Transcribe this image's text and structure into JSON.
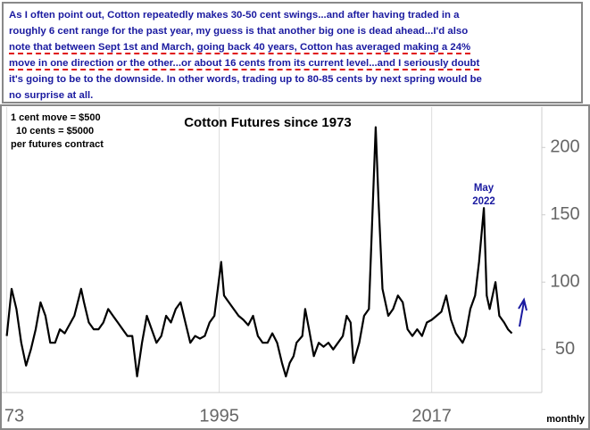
{
  "note_text": [
    "As I often point out, Cotton repeatedly makes 30-50 cent swings...and after having traded in a",
    "roughly 6 cent range for the past year, my guess is that another big one is dead ahead...I'd also",
    "note that between Sept 1st and March, going back 40 years, Cotton has averaged making a 24%",
    "move in one direction or the other...or about 16 cents from its current level...and I seriously doubt",
    "it's going to be to the downside. In other words, trading up to 80-85 cents by next spring would be",
    "no surprise at all."
  ],
  "chart_data": {
    "type": "line",
    "title": "Cotton Futures since 1973",
    "annotations": [
      "1 cent move = $500",
      "10 cents = $5000",
      "per futures contract"
    ],
    "event_label": [
      "May",
      "2022"
    ],
    "frequency_label": "monthly",
    "color": "#000000",
    "x": [
      1973.0,
      1973.5,
      1974.0,
      1974.5,
      1975.0,
      1975.5,
      1976.0,
      1976.5,
      1977.0,
      1977.5,
      1978.0,
      1978.5,
      1979.0,
      1980.0,
      1980.7,
      1981.0,
      1981.5,
      1982.0,
      1982.5,
      1983.0,
      1983.5,
      1984.0,
      1984.5,
      1985.0,
      1985.5,
      1986.0,
      1986.5,
      1987.0,
      1987.5,
      1988.0,
      1988.5,
      1989.0,
      1989.5,
      1990.0,
      1990.5,
      1991.0,
      1991.5,
      1992.0,
      1992.5,
      1993.0,
      1993.5,
      1994.0,
      1994.5,
      1995.2,
      1995.5,
      1996.0,
      1996.5,
      1997.0,
      1997.5,
      1998.0,
      1998.5,
      1999.0,
      1999.5,
      2000.0,
      2000.5,
      2001.0,
      2001.5,
      2001.9,
      2002.3,
      2002.7,
      2003.0,
      2003.6,
      2003.9,
      2004.3,
      2004.8,
      2005.3,
      2005.8,
      2006.3,
      2006.8,
      2007.3,
      2007.8,
      2008.2,
      2008.6,
      2008.9,
      2009.5,
      2010.0,
      2010.5,
      2011.2,
      2011.5,
      2011.9,
      2012.5,
      2013.0,
      2013.5,
      2014.0,
      2014.5,
      2015.0,
      2015.5,
      2016.0,
      2016.5,
      2017.0,
      2017.5,
      2018.0,
      2018.5,
      2019.0,
      2019.5,
      2020.2,
      2020.5,
      2021.0,
      2021.5,
      2021.9,
      2022.4,
      2022.7,
      2023.0,
      2023.6,
      2024.0,
      2024.5,
      2024.9,
      2025.3
    ],
    "values": [
      60,
      95,
      80,
      55,
      38,
      50,
      65,
      85,
      75,
      55,
      55,
      65,
      62,
      75,
      95,
      85,
      70,
      65,
      65,
      70,
      80,
      75,
      70,
      65,
      60,
      60,
      30,
      55,
      75,
      65,
      55,
      60,
      75,
      70,
      80,
      85,
      70,
      55,
      60,
      58,
      60,
      70,
      75,
      115,
      90,
      85,
      80,
      75,
      72,
      68,
      75,
      60,
      55,
      55,
      62,
      55,
      40,
      30,
      40,
      45,
      55,
      60,
      80,
      65,
      45,
      55,
      52,
      55,
      50,
      55,
      60,
      75,
      70,
      40,
      55,
      75,
      80,
      215,
      160,
      95,
      75,
      80,
      90,
      85,
      65,
      60,
      65,
      60,
      70,
      72,
      75,
      78,
      90,
      72,
      62,
      55,
      60,
      80,
      90,
      115,
      155,
      90,
      80,
      100,
      75,
      70,
      65,
      62
    ],
    "xlim": [
      1972.3,
      2028.4
    ],
    "ylim": [
      18,
      230
    ],
    "xticks": [
      {
        "value": 1973,
        "label": "73"
      },
      1995,
      2017
    ],
    "yticks": [
      50,
      100,
      150,
      200
    ],
    "grid": "x"
  }
}
